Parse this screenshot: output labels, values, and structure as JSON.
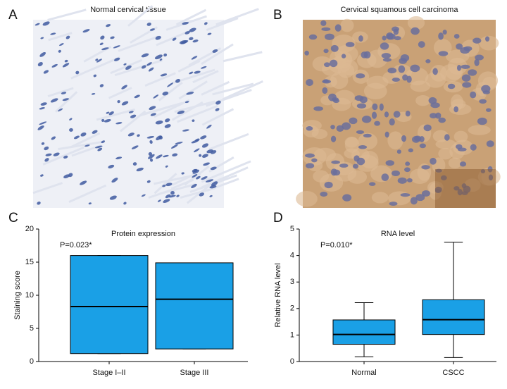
{
  "panels": [
    {
      "label": "A",
      "title": "Normal cervical tissue"
    },
    {
      "label": "B",
      "title": "Cervical squamous cell carcinoma"
    }
  ],
  "chart_data": [
    {
      "type": "box",
      "label": "C",
      "title": "Protein expression",
      "annotation": "P=0.023*",
      "y_label": "Staining score",
      "categories": [
        "Stage I–II",
        "Stage III"
      ],
      "color": "#1aa0e6",
      "boxes": [
        {
          "min": 1.2,
          "q1": 1.2,
          "median": 8.3,
          "q3": 16,
          "max": 16
        },
        {
          "min": 1.9,
          "q1": 1.9,
          "median": 9.4,
          "q3": 14.9,
          "max": 14.9
        }
      ],
      "ylim": [
        0,
        20
      ],
      "yticks": [
        0,
        5,
        10,
        15,
        20
      ]
    },
    {
      "type": "box",
      "label": "D",
      "title": "RNA level",
      "annotation": "P=0.010*",
      "y_label": "Relative RNA level",
      "categories": [
        "Normal",
        "CSCC"
      ],
      "color": "#1aa0e6",
      "boxes": [
        {
          "min": 0.18,
          "q1": 0.65,
          "median": 1.02,
          "q3": 1.57,
          "max": 2.22
        },
        {
          "min": 0.15,
          "q1": 1.02,
          "median": 1.58,
          "q3": 2.33,
          "max": 4.5
        }
      ],
      "ylim": [
        0,
        5
      ],
      "yticks": [
        0,
        1,
        2,
        3,
        4,
        5
      ]
    }
  ]
}
